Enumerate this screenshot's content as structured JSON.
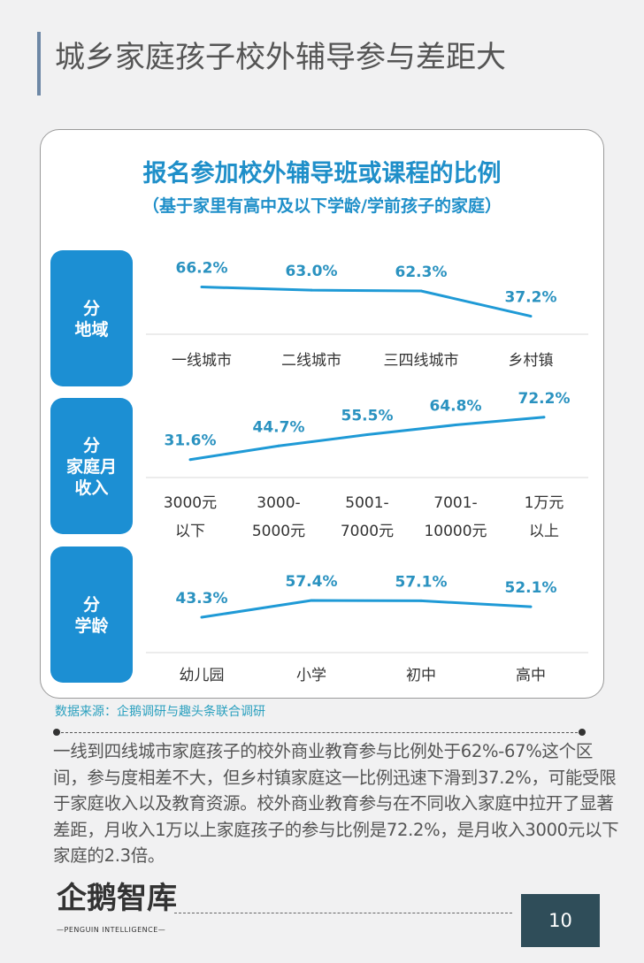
{
  "header": {
    "title": "城乡家庭孩子校外辅导参与差距大"
  },
  "chart_data": {
    "type": "line",
    "title": "报名参加校外辅导班或课程的比例",
    "subtitle": "（基于家里有高中及以下学龄/学前孩子的家庭）",
    "unit": "%",
    "panels": [
      {
        "label": [
          "分",
          "地域"
        ],
        "categories": [
          [
            "一线城市"
          ],
          [
            "二线城市"
          ],
          [
            "三四线城市"
          ],
          [
            "乡村镇"
          ]
        ],
        "values": [
          66.2,
          63.0,
          62.3,
          37.2
        ],
        "value_labels": [
          "66.2%",
          "63.0%",
          "62.3%",
          "37.2%"
        ]
      },
      {
        "label": [
          "分",
          "家庭月",
          "收入"
        ],
        "categories": [
          [
            "3000元",
            "以下"
          ],
          [
            "3000-",
            "5000元"
          ],
          [
            "5001-",
            "7000元"
          ],
          [
            "7001-",
            "10000元"
          ],
          [
            "1万元",
            "以上"
          ]
        ],
        "values": [
          31.6,
          44.7,
          55.5,
          64.8,
          72.2
        ],
        "value_labels": [
          "31.6%",
          "44.7%",
          "55.5%",
          "64.8%",
          "72.2%"
        ]
      },
      {
        "label": [
          "分",
          "学龄"
        ],
        "categories": [
          [
            "幼儿园"
          ],
          [
            "小学"
          ],
          [
            "初中"
          ],
          [
            "高中"
          ]
        ],
        "values": [
          43.3,
          57.4,
          57.1,
          52.1
        ],
        "value_labels": [
          "43.3%",
          "57.4%",
          "57.1%",
          "52.1%"
        ]
      }
    ],
    "colors": {
      "line": "#1f9ad6",
      "label": "#2a92c0",
      "box": "#1c8fd3"
    }
  },
  "source": "数据来源：企鹅调研与趣头条联合调研",
  "body_text": "一线到四线城市家庭孩子的校外商业教育参与比例处于62%-67%这个区间，参与度相差不大，但乡村镇家庭这一比例迅速下滑到37.2%，可能受限于家庭收入以及教育资源。校外商业教育参与在不同收入家庭中拉开了显著差距，月收入1万以上家庭孩子的参与比例是72.2%，是月收入3000元以下家庭的2.3倍。",
  "footer": {
    "logo": "企鹅智库",
    "logo_sub": "—PENGUIN INTELLIGENCE—",
    "page": "10"
  }
}
